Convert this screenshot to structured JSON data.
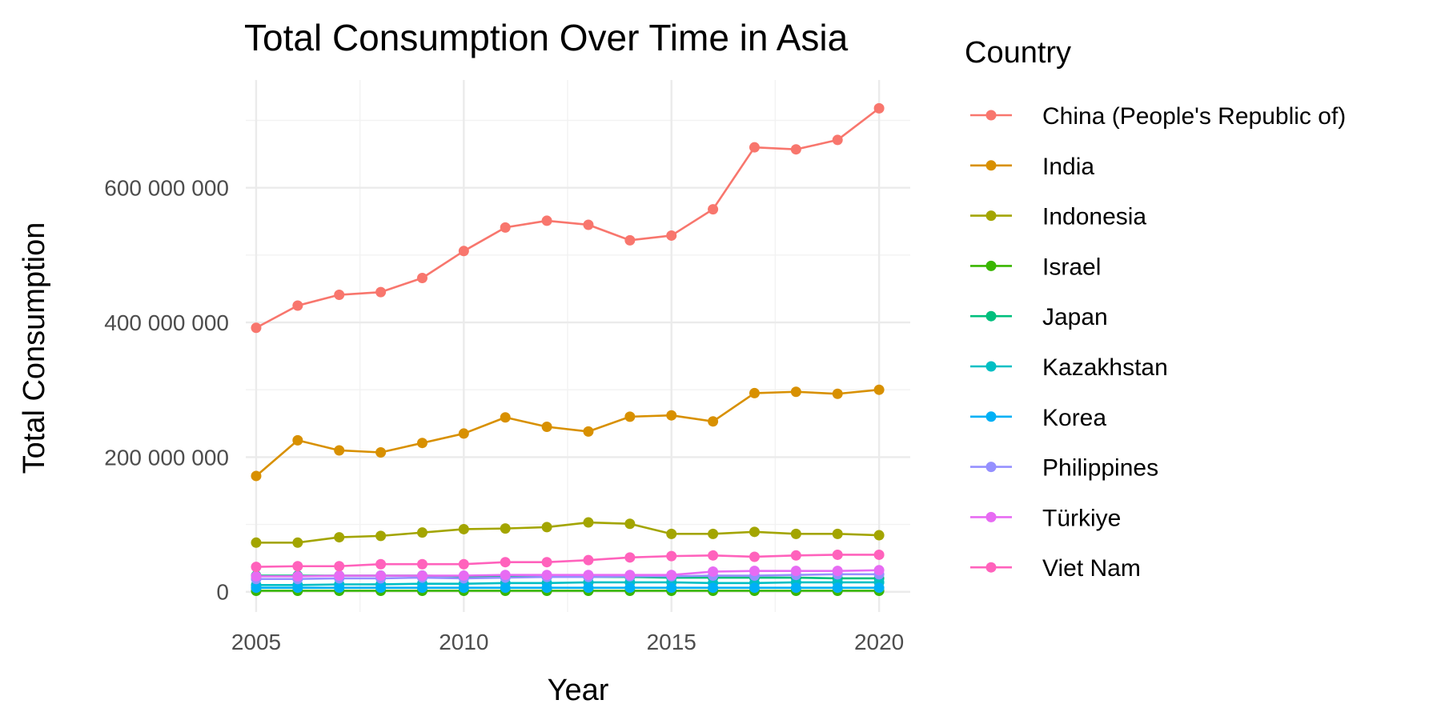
{
  "chart_data": {
    "type": "line",
    "title": "Total Consumption Over Time in Asia",
    "xlabel": "Year",
    "ylabel": "Total Consumption",
    "legend_title": "Country",
    "legend_position": "right",
    "grid": true,
    "xlim": [
      2004.75,
      2020.75
    ],
    "ylim": [
      -30000000,
      760000000
    ],
    "x_ticks": [
      2005,
      2010,
      2015,
      2020
    ],
    "x_tick_labels": [
      "2005",
      "2010",
      "2015",
      "2020"
    ],
    "y_ticks": [
      0,
      200000000,
      400000000,
      600000000
    ],
    "y_tick_labels": [
      "0",
      "200 000 000",
      "400 000 000",
      "600 000 000"
    ],
    "x": [
      2005,
      2006,
      2007,
      2008,
      2009,
      2010,
      2011,
      2012,
      2013,
      2014,
      2015,
      2016,
      2017,
      2018,
      2019,
      2020
    ],
    "series": [
      {
        "name": "China (People's Republic of)",
        "color": "#F8766D",
        "values": [
          392000000,
          425000000,
          441000000,
          445000000,
          466000000,
          506000000,
          541000000,
          551000000,
          545000000,
          522000000,
          529000000,
          568000000,
          660000000,
          657000000,
          671000000,
          718000000
        ]
      },
      {
        "name": "India",
        "color": "#D89000",
        "values": [
          172000000,
          225000000,
          210000000,
          207000000,
          221000000,
          235000000,
          259000000,
          245000000,
          238000000,
          260000000,
          262000000,
          253000000,
          295000000,
          297000000,
          294000000,
          300000000
        ]
      },
      {
        "name": "Indonesia",
        "color": "#A3A500",
        "values": [
          73000000,
          73000000,
          81000000,
          83000000,
          88000000,
          93000000,
          94000000,
          96000000,
          103000000,
          101000000,
          86000000,
          86000000,
          89000000,
          86000000,
          86000000,
          84000000
        ]
      },
      {
        "name": "Israel",
        "color": "#39B600",
        "values": [
          1500000,
          1500000,
          1500000,
          1500000,
          1500000,
          1500000,
          1500000,
          1500000,
          1500000,
          1500000,
          1500000,
          1500000,
          1500000,
          1500000,
          1500000,
          1500000
        ]
      },
      {
        "name": "Japan",
        "color": "#00BF7D",
        "values": [
          24000000,
          24000000,
          24000000,
          24000000,
          24000000,
          23000000,
          23000000,
          22000000,
          22000000,
          22000000,
          21000000,
          21000000,
          21000000,
          21000000,
          20000000,
          20000000
        ]
      },
      {
        "name": "Kazakhstan",
        "color": "#00BFC4",
        "values": [
          10000000,
          10000000,
          11000000,
          11000000,
          12000000,
          12000000,
          13000000,
          13000000,
          14000000,
          14000000,
          14000000,
          13000000,
          13000000,
          14000000,
          14000000,
          14000000
        ]
      },
      {
        "name": "Korea",
        "color": "#00B0F6",
        "values": [
          6000000,
          6000000,
          6000000,
          6000000,
          6000000,
          6000000,
          6000000,
          6000000,
          6000000,
          6000000,
          6000000,
          6000000,
          6000000,
          6000000,
          6000000,
          6000000
        ]
      },
      {
        "name": "Philippines",
        "color": "#9590FF",
        "values": [
          19000000,
          19000000,
          20000000,
          20000000,
          21000000,
          20000000,
          21000000,
          22000000,
          22000000,
          23000000,
          23000000,
          24000000,
          24000000,
          25000000,
          26000000,
          26000000
        ]
      },
      {
        "name": "Türkiye",
        "color": "#E76BF3",
        "values": [
          23000000,
          23000000,
          24000000,
          24000000,
          24000000,
          24000000,
          25000000,
          25000000,
          25000000,
          25000000,
          25000000,
          30000000,
          31000000,
          31000000,
          31000000,
          32000000
        ]
      },
      {
        "name": "Viet Nam",
        "color": "#FF62BC",
        "values": [
          37000000,
          38000000,
          38000000,
          41000000,
          41000000,
          41000000,
          44000000,
          44000000,
          47000000,
          51000000,
          53000000,
          54000000,
          52000000,
          54000000,
          55000000,
          55000000
        ]
      }
    ]
  }
}
